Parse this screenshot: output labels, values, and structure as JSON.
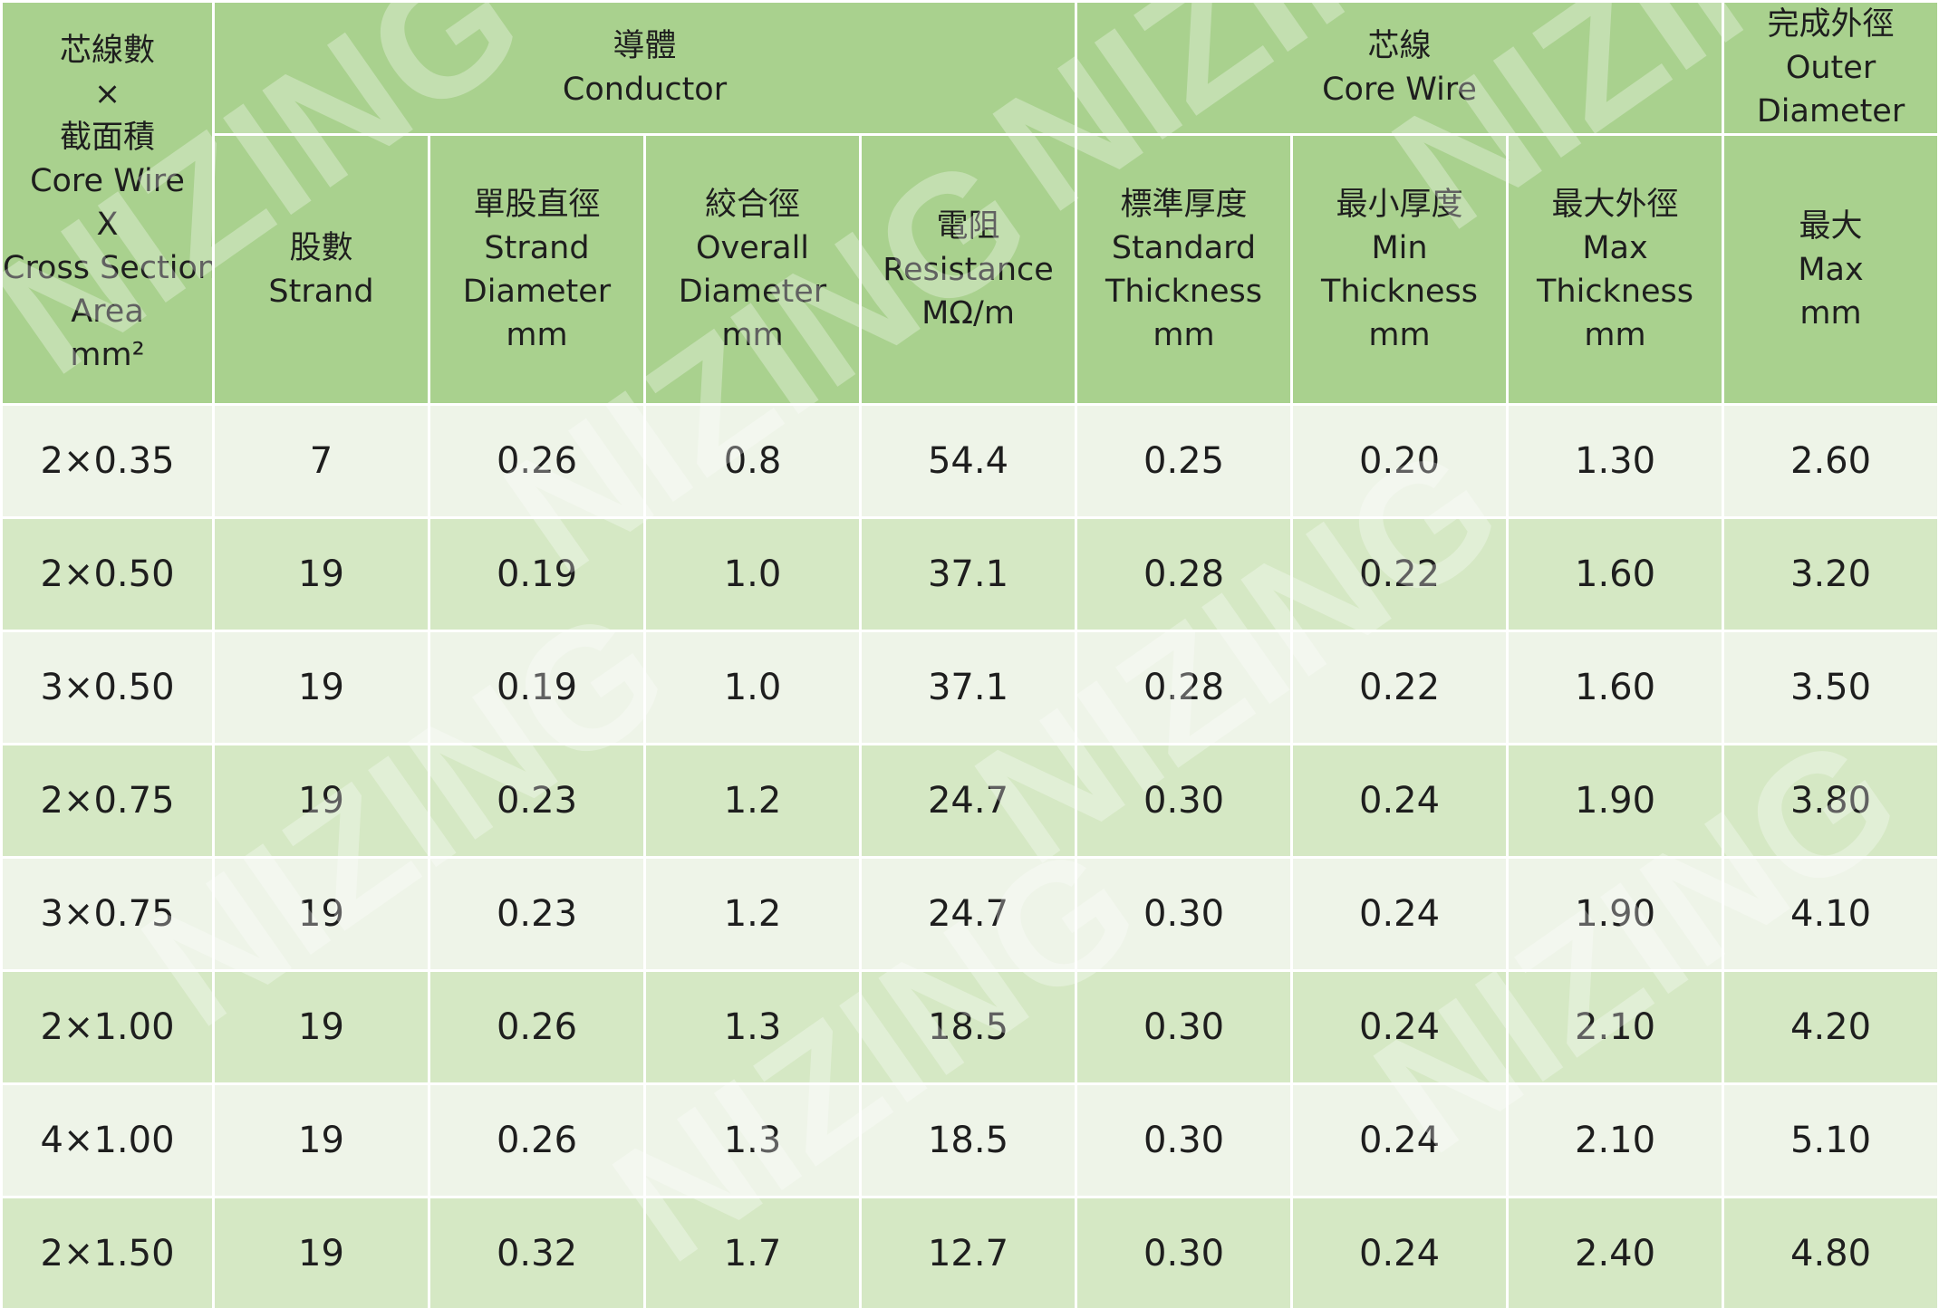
{
  "headers": {
    "core_area": {
      "zh_top": "芯線數",
      "times": "×",
      "zh_bottom": "截面積",
      "en1": "Core Wire",
      "en2": "X",
      "en3": "Cross Section",
      "en4": "Area",
      "unit": "mm²"
    },
    "conductor": {
      "zh": "導體",
      "en": "Conductor"
    },
    "core_wire": {
      "zh": "芯線",
      "en": "Core Wire"
    },
    "outer_diameter": {
      "zh": "完成外徑",
      "en1": "Outer",
      "en2": "Diameter"
    },
    "strand": {
      "zh": "股數",
      "en": "Strand"
    },
    "strand_diameter": {
      "zh": "單股直徑",
      "en1": "Strand",
      "en2": "Diameter",
      "unit": "mm"
    },
    "overall_diameter": {
      "zh": "絞合徑",
      "en1": "Overall",
      "en2": "Diameter",
      "unit": "mm"
    },
    "resistance": {
      "zh": "電阻",
      "en": "Resistance",
      "unit": "MΩ/m"
    },
    "standard_thickness": {
      "zh": "標準厚度",
      "en1": "Standard",
      "en2": "Thickness",
      "unit": "mm"
    },
    "min_thickness": {
      "zh": "最小厚度",
      "en1": "Min",
      "en2": "Thickness",
      "unit": "mm"
    },
    "max_thickness": {
      "zh": "最大外徑",
      "en1": "Max",
      "en2": "Thickness",
      "unit": "mm"
    },
    "max": {
      "zh": "最大",
      "en": "Max",
      "unit": "mm"
    }
  },
  "rows": [
    [
      "2×0.35",
      "7",
      "0.26",
      "0.8",
      "54.4",
      "0.25",
      "0.20",
      "1.30",
      "2.60"
    ],
    [
      "2×0.50",
      "19",
      "0.19",
      "1.0",
      "37.1",
      "0.28",
      "0.22",
      "1.60",
      "3.20"
    ],
    [
      "3×0.50",
      "19",
      "0.19",
      "1.0",
      "37.1",
      "0.28",
      "0.22",
      "1.60",
      "3.50"
    ],
    [
      "2×0.75",
      "19",
      "0.23",
      "1.2",
      "24.7",
      "0.30",
      "0.24",
      "1.90",
      "3.80"
    ],
    [
      "3×0.75",
      "19",
      "0.23",
      "1.2",
      "24.7",
      "0.30",
      "0.24",
      "1.90",
      "4.10"
    ],
    [
      "2×1.00",
      "19",
      "0.26",
      "1.3",
      "18.5",
      "0.30",
      "0.24",
      "2.10",
      "4.20"
    ],
    [
      "4×1.00",
      "19",
      "0.26",
      "1.3",
      "18.5",
      "0.30",
      "0.24",
      "2.10",
      "5.10"
    ],
    [
      "2×1.50",
      "19",
      "0.32",
      "1.7",
      "12.7",
      "0.30",
      "0.24",
      "2.40",
      "4.80"
    ]
  ],
  "watermark": {
    "text": "NIZING"
  },
  "colors": {
    "header_bg": "#a9d18e",
    "row_light": "#eef4e8",
    "row_dark": "#d5e8c4",
    "grid": "#ffffff"
  }
}
